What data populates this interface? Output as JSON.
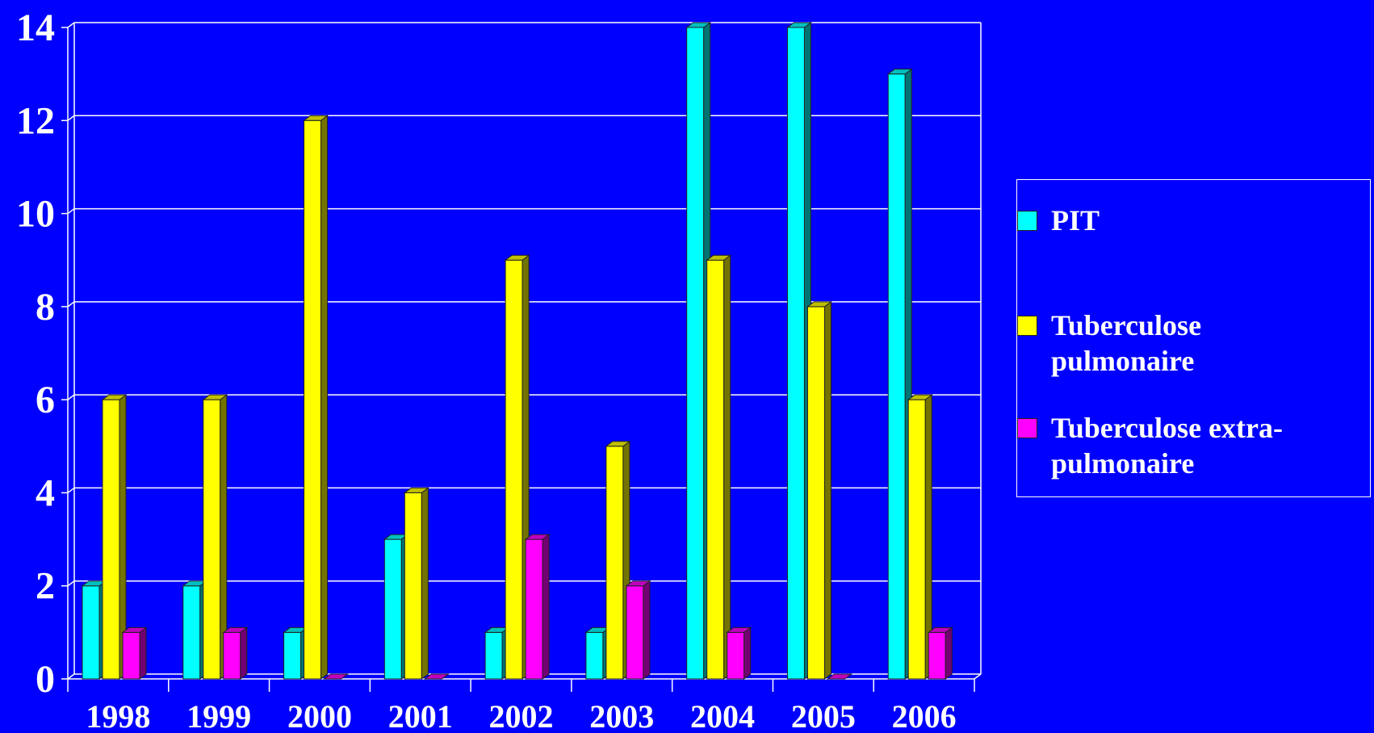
{
  "chart_data": {
    "type": "bar",
    "categories": [
      "1998",
      "1999",
      "2000",
      "2001",
      "2002",
      "2003",
      "2004",
      "2005",
      "2006"
    ],
    "series": [
      {
        "name": "PIT",
        "color": "#00FFFF",
        "values": [
          2,
          2,
          1,
          3,
          1,
          1,
          14,
          14,
          13
        ]
      },
      {
        "name": "Tuberculose pulmonaire",
        "color": "#FFFF00",
        "values": [
          6,
          6,
          12,
          4,
          9,
          5,
          9,
          8,
          6
        ]
      },
      {
        "name": "Tuberculose extra-pulmonaire",
        "color": "#FF00FF",
        "values": [
          1,
          1,
          0,
          0,
          3,
          2,
          1,
          0,
          1
        ]
      }
    ],
    "yticks": [
      "0",
      "2",
      "4",
      "6",
      "8",
      "10",
      "12",
      "14"
    ],
    "ylim": [
      0,
      14
    ],
    "grid": true,
    "legend_position": "right",
    "background": "#0000FF"
  }
}
